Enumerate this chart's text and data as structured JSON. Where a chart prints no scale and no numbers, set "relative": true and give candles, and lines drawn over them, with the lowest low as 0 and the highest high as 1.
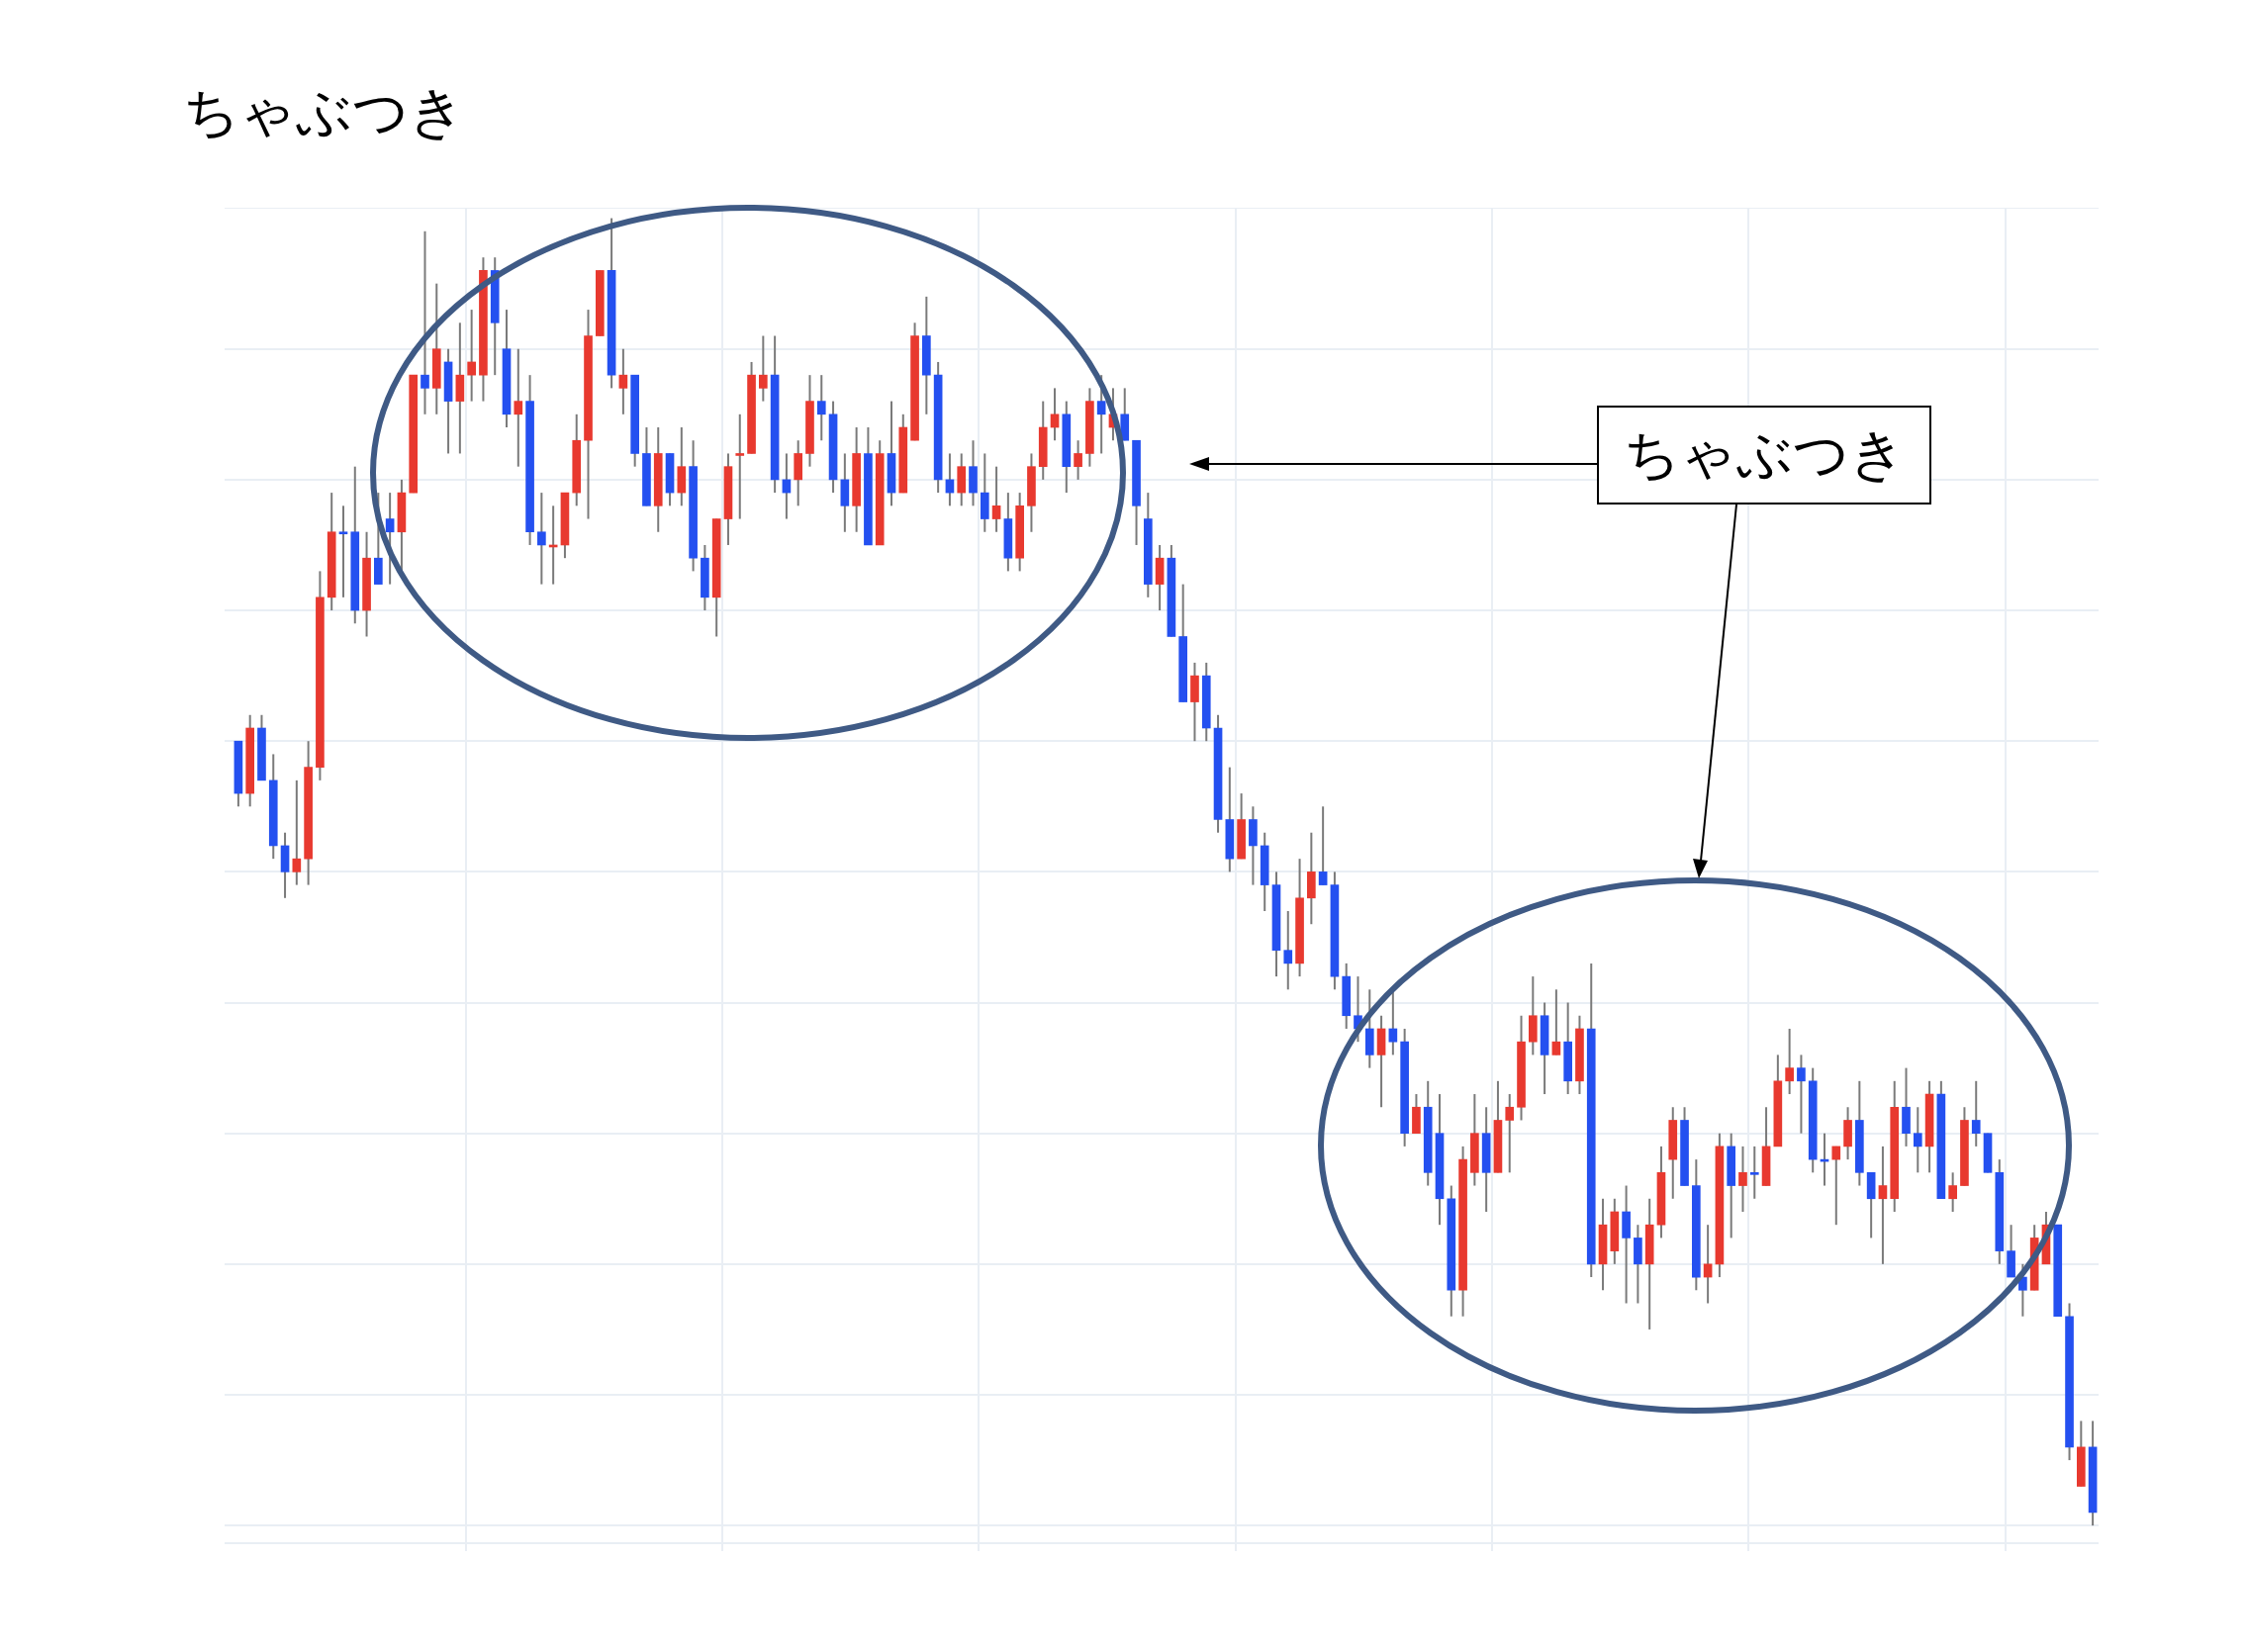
{
  "chart_data": {
    "type": "candlestick",
    "title": "ちゃぶつき",
    "annotations": [
      "ちゃぶつき"
    ],
    "relative": true,
    "grid": true,
    "categories": [
      null,
      null,
      null,
      null,
      null,
      null,
      null,
      null,
      null,
      null,
      null,
      null,
      null,
      null,
      null,
      null,
      null,
      null,
      null,
      null,
      null,
      null,
      null,
      null,
      null,
      null,
      null,
      null,
      null,
      null,
      null,
      null,
      null,
      null,
      null,
      null,
      null,
      null,
      null,
      null,
      null,
      null,
      null,
      null,
      null,
      null,
      null,
      null,
      null,
      null,
      null,
      null,
      null,
      null,
      null,
      null,
      null,
      null,
      null,
      null,
      null,
      null,
      null,
      null,
      null,
      null,
      null,
      null,
      null,
      null,
      null,
      null,
      null,
      null,
      null,
      null,
      null,
      null,
      null,
      null,
      null,
      null,
      null,
      null,
      null,
      null,
      null,
      null,
      null,
      null,
      null,
      null,
      null,
      null,
      null,
      null,
      null,
      null,
      null,
      null,
      null,
      null,
      null,
      null,
      null,
      null,
      null,
      null,
      null,
      null,
      null,
      null,
      null,
      null,
      null,
      null,
      null,
      null,
      null,
      null,
      null,
      null,
      null,
      null,
      null,
      null,
      null,
      null,
      null,
      null,
      null,
      null,
      null,
      null,
      null,
      null,
      null,
      null,
      null,
      null,
      null,
      null,
      null,
      null,
      null,
      null,
      null,
      null,
      null,
      null,
      null,
      null,
      null,
      null,
      null,
      null,
      null,
      null,
      null,
      null
    ],
    "ohlc": [
      [
        0.6,
        0.6,
        0.55,
        0.56
      ],
      [
        0.56,
        0.62,
        0.55,
        0.61
      ],
      [
        0.61,
        0.62,
        0.57,
        0.57
      ],
      [
        0.57,
        0.59,
        0.51,
        0.52
      ],
      [
        0.52,
        0.53,
        0.48,
        0.5
      ],
      [
        0.5,
        0.57,
        0.49,
        0.51
      ],
      [
        0.51,
        0.6,
        0.49,
        0.58
      ],
      [
        0.58,
        0.73,
        0.57,
        0.71
      ],
      [
        0.71,
        0.79,
        0.7,
        0.76
      ],
      [
        0.76,
        0.78,
        0.71,
        0.76
      ],
      [
        0.76,
        0.81,
        0.69,
        0.7
      ],
      [
        0.7,
        0.76,
        0.68,
        0.74
      ],
      [
        0.74,
        0.79,
        0.72,
        0.72
      ],
      [
        0.77,
        0.79,
        0.72,
        0.76
      ],
      [
        0.76,
        0.8,
        0.73,
        0.79
      ],
      [
        0.79,
        0.88,
        0.79,
        0.88
      ],
      [
        0.88,
        0.99,
        0.85,
        0.87
      ],
      [
        0.87,
        0.95,
        0.85,
        0.9
      ],
      [
        0.89,
        0.9,
        0.82,
        0.86
      ],
      [
        0.86,
        0.92,
        0.82,
        0.88
      ],
      [
        0.88,
        0.93,
        0.86,
        0.89
      ],
      [
        0.88,
        0.97,
        0.86,
        0.96
      ],
      [
        0.96,
        0.97,
        0.88,
        0.92
      ],
      [
        0.9,
        0.93,
        0.84,
        0.85
      ],
      [
        0.85,
        0.9,
        0.81,
        0.86
      ],
      [
        0.86,
        0.88,
        0.75,
        0.76
      ],
      [
        0.76,
        0.79,
        0.72,
        0.75
      ],
      [
        0.75,
        0.78,
        0.72,
        0.75
      ],
      [
        0.75,
        0.79,
        0.74,
        0.79
      ],
      [
        0.79,
        0.85,
        0.78,
        0.83
      ],
      [
        0.83,
        0.93,
        0.77,
        0.91
      ],
      [
        0.91,
        0.96,
        0.91,
        0.96
      ],
      [
        0.96,
        1.0,
        0.87,
        0.88
      ],
      [
        0.87,
        0.9,
        0.85,
        0.88
      ],
      [
        0.88,
        0.88,
        0.81,
        0.82
      ],
      [
        0.82,
        0.84,
        0.78,
        0.78
      ],
      [
        0.78,
        0.84,
        0.76,
        0.82
      ],
      [
        0.82,
        0.82,
        0.78,
        0.79
      ],
      [
        0.79,
        0.84,
        0.78,
        0.81
      ],
      [
        0.81,
        0.83,
        0.73,
        0.74
      ],
      [
        0.74,
        0.75,
        0.7,
        0.71
      ],
      [
        0.71,
        0.77,
        0.68,
        0.77
      ],
      [
        0.77,
        0.82,
        0.75,
        0.81
      ],
      [
        0.82,
        0.85,
        0.77,
        0.82
      ],
      [
        0.82,
        0.89,
        0.82,
        0.88
      ],
      [
        0.87,
        0.91,
        0.86,
        0.88
      ],
      [
        0.88,
        0.91,
        0.79,
        0.8
      ],
      [
        0.8,
        0.82,
        0.77,
        0.79
      ],
      [
        0.8,
        0.83,
        0.78,
        0.82
      ],
      [
        0.82,
        0.88,
        0.81,
        0.86
      ],
      [
        0.86,
        0.88,
        0.83,
        0.85
      ],
      [
        0.85,
        0.86,
        0.79,
        0.8
      ],
      [
        0.8,
        0.82,
        0.76,
        0.78
      ],
      [
        0.78,
        0.84,
        0.76,
        0.82
      ],
      [
        0.82,
        0.84,
        0.75,
        0.75
      ],
      [
        0.75,
        0.83,
        0.75,
        0.82
      ],
      [
        0.82,
        0.86,
        0.78,
        0.79
      ],
      [
        0.79,
        0.85,
        0.79,
        0.84
      ],
      [
        0.83,
        0.92,
        0.83,
        0.91
      ],
      [
        0.91,
        0.94,
        0.85,
        0.88
      ],
      [
        0.88,
        0.89,
        0.79,
        0.8
      ],
      [
        0.8,
        0.82,
        0.78,
        0.79
      ],
      [
        0.79,
        0.82,
        0.78,
        0.81
      ],
      [
        0.81,
        0.83,
        0.78,
        0.79
      ],
      [
        0.79,
        0.82,
        0.76,
        0.77
      ],
      [
        0.77,
        0.81,
        0.76,
        0.78
      ],
      [
        0.77,
        0.79,
        0.73,
        0.74
      ],
      [
        0.74,
        0.79,
        0.73,
        0.78
      ],
      [
        0.78,
        0.82,
        0.76,
        0.81
      ],
      [
        0.81,
        0.86,
        0.8,
        0.84
      ],
      [
        0.84,
        0.87,
        0.83,
        0.85
      ],
      [
        0.85,
        0.86,
        0.79,
        0.81
      ],
      [
        0.81,
        0.83,
        0.8,
        0.82
      ],
      [
        0.82,
        0.87,
        0.81,
        0.86
      ],
      [
        0.86,
        0.88,
        0.82,
        0.85
      ],
      [
        0.84,
        0.87,
        0.83,
        0.85
      ],
      [
        0.85,
        0.87,
        0.83,
        0.83
      ],
      [
        0.83,
        0.83,
        0.75,
        0.78
      ],
      [
        0.77,
        0.79,
        0.71,
        0.72
      ],
      [
        0.72,
        0.75,
        0.7,
        0.74
      ],
      [
        0.74,
        0.75,
        0.68,
        0.68
      ],
      [
        0.68,
        0.72,
        0.63,
        0.63
      ],
      [
        0.63,
        0.66,
        0.6,
        0.65
      ],
      [
        0.65,
        0.66,
        0.6,
        0.61
      ],
      [
        0.61,
        0.62,
        0.53,
        0.54
      ],
      [
        0.54,
        0.58,
        0.5,
        0.51
      ],
      [
        0.51,
        0.56,
        0.51,
        0.54
      ],
      [
        0.54,
        0.55,
        0.49,
        0.52
      ],
      [
        0.52,
        0.53,
        0.47,
        0.49
      ],
      [
        0.49,
        0.5,
        0.42,
        0.44
      ],
      [
        0.44,
        0.47,
        0.41,
        0.43
      ],
      [
        0.43,
        0.51,
        0.42,
        0.48
      ],
      [
        0.48,
        0.53,
        0.46,
        0.5
      ],
      [
        0.5,
        0.55,
        0.49,
        0.49
      ],
      [
        0.49,
        0.5,
        0.41,
        0.42
      ],
      [
        0.42,
        0.43,
        0.38,
        0.39
      ],
      [
        0.39,
        0.42,
        0.37,
        0.38
      ],
      [
        0.38,
        0.41,
        0.35,
        0.36
      ],
      [
        0.36,
        0.39,
        0.32,
        0.38
      ],
      [
        0.38,
        0.41,
        0.36,
        0.37
      ],
      [
        0.37,
        0.38,
        0.29,
        0.3
      ],
      [
        0.3,
        0.33,
        0.3,
        0.32
      ],
      [
        0.32,
        0.34,
        0.26,
        0.27
      ],
      [
        0.3,
        0.33,
        0.23,
        0.25
      ],
      [
        0.25,
        0.26,
        0.16,
        0.18
      ],
      [
        0.18,
        0.29,
        0.16,
        0.28
      ],
      [
        0.27,
        0.33,
        0.26,
        0.3
      ],
      [
        0.3,
        0.32,
        0.24,
        0.27
      ],
      [
        0.27,
        0.34,
        0.27,
        0.31
      ],
      [
        0.31,
        0.33,
        0.27,
        0.32
      ],
      [
        0.32,
        0.39,
        0.31,
        0.37
      ],
      [
        0.37,
        0.42,
        0.36,
        0.39
      ],
      [
        0.39,
        0.4,
        0.33,
        0.36
      ],
      [
        0.36,
        0.41,
        0.36,
        0.37
      ],
      [
        0.37,
        0.4,
        0.33,
        0.34
      ],
      [
        0.34,
        0.39,
        0.33,
        0.38
      ],
      [
        0.38,
        0.43,
        0.19,
        0.2
      ],
      [
        0.2,
        0.25,
        0.18,
        0.23
      ],
      [
        0.21,
        0.25,
        0.2,
        0.24
      ],
      [
        0.24,
        0.26,
        0.17,
        0.22
      ],
      [
        0.22,
        0.23,
        0.17,
        0.2
      ],
      [
        0.2,
        0.25,
        0.15,
        0.23
      ],
      [
        0.23,
        0.29,
        0.22,
        0.27
      ],
      [
        0.28,
        0.32,
        0.25,
        0.31
      ],
      [
        0.31,
        0.32,
        0.26,
        0.26
      ],
      [
        0.26,
        0.28,
        0.18,
        0.19
      ],
      [
        0.19,
        0.23,
        0.17,
        0.2
      ],
      [
        0.2,
        0.3,
        0.19,
        0.29
      ],
      [
        0.29,
        0.3,
        0.22,
        0.26
      ],
      [
        0.26,
        0.29,
        0.24,
        0.27
      ],
      [
        0.27,
        0.29,
        0.25,
        0.27
      ],
      [
        0.26,
        0.32,
        0.26,
        0.29
      ],
      [
        0.29,
        0.36,
        0.29,
        0.34
      ],
      [
        0.34,
        0.38,
        0.33,
        0.35
      ],
      [
        0.35,
        0.36,
        0.3,
        0.34
      ],
      [
        0.34,
        0.35,
        0.27,
        0.28
      ],
      [
        0.28,
        0.3,
        0.26,
        0.28
      ],
      [
        0.28,
        0.29,
        0.23,
        0.29
      ],
      [
        0.29,
        0.32,
        0.28,
        0.31
      ],
      [
        0.31,
        0.34,
        0.26,
        0.27
      ],
      [
        0.27,
        0.27,
        0.22,
        0.25
      ],
      [
        0.25,
        0.29,
        0.2,
        0.26
      ],
      [
        0.25,
        0.34,
        0.24,
        0.32
      ],
      [
        0.32,
        0.35,
        0.29,
        0.3
      ],
      [
        0.3,
        0.32,
        0.27,
        0.29
      ],
      [
        0.29,
        0.34,
        0.27,
        0.33
      ],
      [
        0.33,
        0.34,
        0.25,
        0.25
      ],
      [
        0.25,
        0.27,
        0.24,
        0.26
      ],
      [
        0.26,
        0.32,
        0.26,
        0.31
      ],
      [
        0.31,
        0.34,
        0.29,
        0.3
      ],
      [
        0.3,
        0.3,
        0.27,
        0.27
      ],
      [
        0.27,
        0.28,
        0.2,
        0.21
      ],
      [
        0.21,
        0.23,
        0.19,
        0.19
      ],
      [
        0.19,
        0.2,
        0.16,
        0.18
      ],
      [
        0.18,
        0.23,
        0.18,
        0.22
      ],
      [
        0.2,
        0.24,
        0.2,
        0.23
      ],
      [
        0.23,
        0.23,
        0.16,
        0.16
      ],
      [
        0.16,
        0.17,
        0.05,
        0.06
      ],
      [
        0.03,
        0.08,
        0.03,
        0.06
      ],
      [
        0.06,
        0.08,
        0.0,
        0.01
      ]
    ],
    "colors": [
      "#2450f0",
      "#e8392f",
      "#2450f0",
      "#2450f0",
      "#2450f0",
      "#e8392f",
      "#e8392f",
      "#e8392f",
      "#e8392f",
      "#2450f0",
      "#2450f0",
      "#e8392f",
      "#2450f0",
      "#2450f0",
      "#e8392f",
      "#e8392f",
      "#2450f0",
      "#e8392f",
      "#2450f0",
      "#e8392f",
      "#e8392f",
      "#e8392f",
      "#2450f0",
      "#2450f0",
      "#e8392f",
      "#2450f0",
      "#2450f0",
      "#e8392f",
      "#e8392f",
      "#e8392f",
      "#e8392f",
      "#e8392f",
      "#2450f0",
      "#e8392f",
      "#2450f0",
      "#2450f0",
      "#e8392f",
      "#2450f0",
      "#e8392f",
      "#2450f0",
      "#2450f0",
      "#e8392f",
      "#e8392f",
      "#e8392f",
      "#e8392f",
      "#e8392f",
      "#2450f0",
      "#2450f0",
      "#e8392f",
      "#e8392f",
      "#2450f0",
      "#2450f0",
      "#2450f0",
      "#e8392f",
      "#2450f0",
      "#e8392f",
      "#2450f0",
      "#e8392f",
      "#e8392f",
      "#2450f0",
      "#2450f0",
      "#2450f0",
      "#e8392f",
      "#2450f0",
      "#2450f0",
      "#e8392f",
      "#2450f0",
      "#e8392f",
      "#e8392f",
      "#e8392f",
      "#e8392f",
      "#2450f0",
      "#e8392f",
      "#e8392f",
      "#2450f0",
      "#e8392f",
      "#2450f0",
      "#2450f0",
      "#2450f0",
      "#e8392f",
      "#2450f0",
      "#2450f0",
      "#e8392f",
      "#2450f0",
      "#2450f0",
      "#2450f0",
      "#e8392f",
      "#2450f0",
      "#2450f0",
      "#2450f0",
      "#2450f0",
      "#e8392f",
      "#e8392f",
      "#2450f0",
      "#2450f0",
      "#2450f0",
      "#2450f0",
      "#2450f0",
      "#e8392f",
      "#2450f0",
      "#2450f0",
      "#e8392f",
      "#2450f0",
      "#2450f0",
      "#2450f0",
      "#e8392f",
      "#e8392f",
      "#2450f0",
      "#e8392f",
      "#e8392f",
      "#e8392f",
      "#e8392f",
      "#2450f0",
      "#e8392f",
      "#2450f0",
      "#e8392f",
      "#2450f0",
      "#e8392f",
      "#e8392f",
      "#2450f0",
      "#2450f0",
      "#e8392f",
      "#e8392f",
      "#e8392f",
      "#2450f0",
      "#2450f0",
      "#e8392f",
      "#e8392f",
      "#2450f0",
      "#e8392f",
      "#2450f0",
      "#e8392f",
      "#e8392f",
      "#e8392f",
      "#2450f0",
      "#2450f0",
      "#2450f0",
      "#e8392f",
      "#e8392f",
      "#2450f0",
      "#2450f0",
      "#e8392f",
      "#e8392f",
      "#2450f0",
      "#2450f0",
      "#e8392f",
      "#2450f0",
      "#e8392f",
      "#e8392f",
      "#2450f0",
      "#2450f0",
      "#2450f0",
      "#2450f0",
      "#2450f0",
      "#e8392f",
      "#e8392f",
      "#2450f0",
      "#2450f0",
      "#e8392f",
      "#2450f0"
    ]
  }
}
